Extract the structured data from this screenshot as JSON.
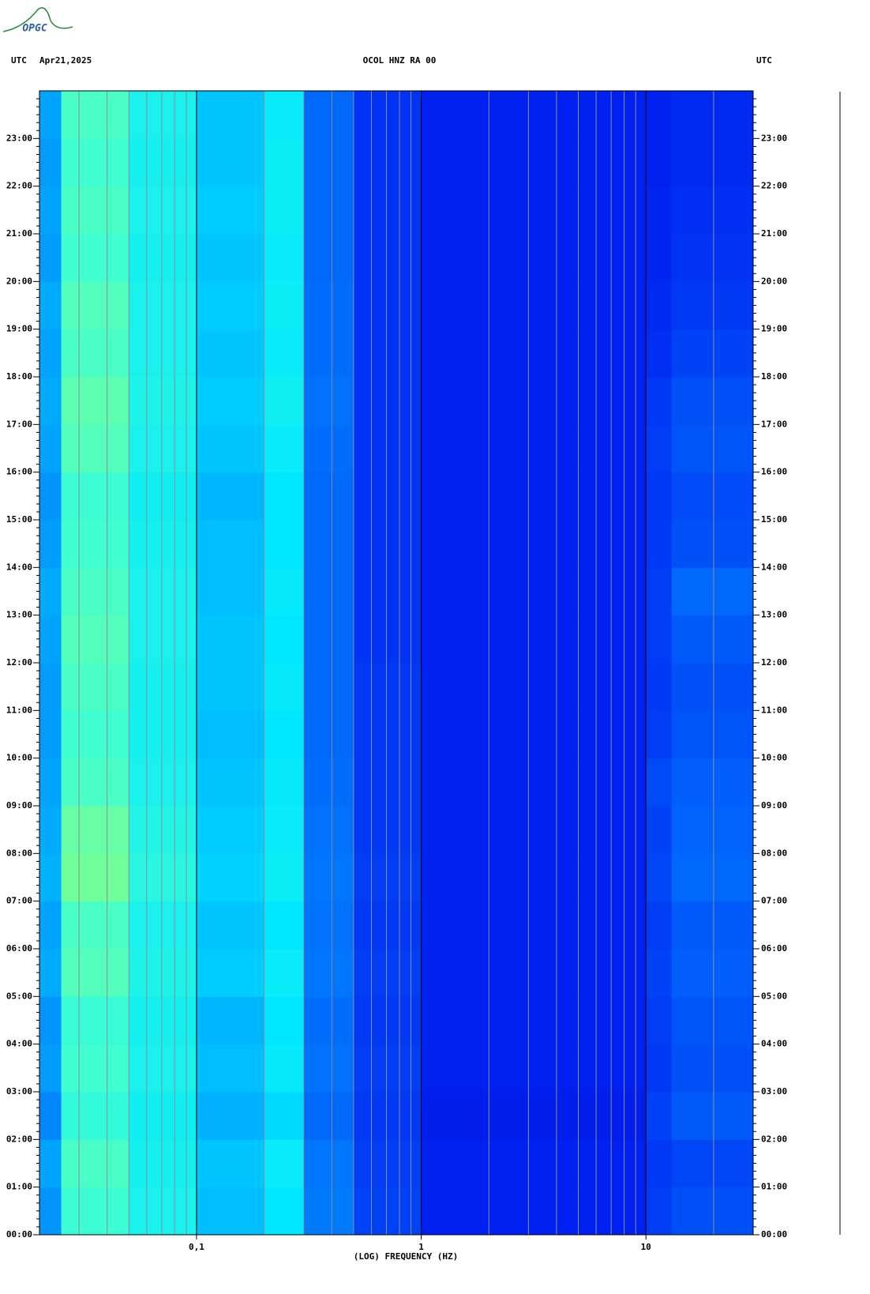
{
  "chart_data": {
    "type": "spectrogram",
    "logo": "OPGC",
    "title": "OCOL HNZ RA 00",
    "date": "Apr21,2025",
    "time_zone_left": "UTC",
    "time_zone_right": "UTC",
    "x_label": "(LOG) FREQUENCY (HZ)",
    "x_scale": "log",
    "xlim": [
      0.02,
      30
    ],
    "ylim": [
      0,
      24
    ],
    "xticks": [
      {
        "value": 0.1,
        "label": "0,1"
      },
      1,
      10
    ],
    "xgrid_minor": [
      0.03,
      0.04,
      0.05,
      0.06,
      0.07,
      0.08,
      0.09,
      0.2,
      0.3,
      0.4,
      0.5,
      0.6,
      0.7,
      0.8,
      0.9,
      2,
      3,
      4,
      5,
      6,
      7,
      8,
      9,
      20,
      30
    ],
    "yticks": [
      {
        "value": 0,
        "label": "00:00"
      },
      {
        "value": 1,
        "label": "01:00"
      },
      {
        "value": 2,
        "label": "02:00"
      },
      {
        "value": 3,
        "label": "03:00"
      },
      {
        "value": 4,
        "label": "04:00"
      },
      {
        "value": 5,
        "label": "05:00"
      },
      {
        "value": 6,
        "label": "06:00"
      },
      {
        "value": 7,
        "label": "07:00"
      },
      {
        "value": 8,
        "label": "08:00"
      },
      {
        "value": 9,
        "label": "09:00"
      },
      {
        "value": 10,
        "label": "10:00"
      },
      {
        "value": 11,
        "label": "11:00"
      },
      {
        "value": 12,
        "label": "12:00"
      },
      {
        "value": 13,
        "label": "13:00"
      },
      {
        "value": 14,
        "label": "14:00"
      },
      {
        "value": 15,
        "label": "15:00"
      },
      {
        "value": 16,
        "label": "16:00"
      },
      {
        "value": 17,
        "label": "17:00"
      },
      {
        "value": 18,
        "label": "18:00"
      },
      {
        "value": 19,
        "label": "19:00"
      },
      {
        "value": 20,
        "label": "20:00"
      },
      {
        "value": 21,
        "label": "21:00"
      },
      {
        "value": 22,
        "label": "22:00"
      },
      {
        "value": 23,
        "label": "23:00"
      }
    ],
    "band_edges": [
      0.02,
      0.025,
      0.05,
      0.1,
      0.2,
      0.3,
      0.5,
      1,
      10,
      13,
      30
    ],
    "time_edges": [
      0,
      1,
      2,
      3,
      4,
      5,
      6,
      7,
      8,
      9,
      10,
      11,
      12,
      13,
      14,
      15,
      16,
      17,
      18,
      19,
      20,
      21,
      22,
      23,
      24
    ],
    "colormap": [
      {
        "at": 0,
        "color": "#000080"
      },
      {
        "at": 0.15,
        "color": "#0020f0"
      },
      {
        "at": 0.35,
        "color": "#0080ff"
      },
      {
        "at": 0.5,
        "color": "#00e8ff"
      },
      {
        "at": 0.65,
        "color": "#40ffd0"
      },
      {
        "at": 0.8,
        "color": "#d0ff30"
      },
      {
        "at": 1,
        "color": "#ff0000"
      }
    ],
    "values": [
      [
        0.38,
        0.64,
        0.56,
        0.44,
        0.5,
        0.34,
        0.22,
        0.15,
        0.21,
        0.25
      ],
      [
        0.4,
        0.66,
        0.55,
        0.45,
        0.52,
        0.33,
        0.21,
        0.15,
        0.2,
        0.23
      ],
      [
        0.36,
        0.62,
        0.54,
        0.42,
        0.48,
        0.3,
        0.2,
        0.14,
        0.22,
        0.27
      ],
      [
        0.39,
        0.65,
        0.56,
        0.44,
        0.51,
        0.32,
        0.21,
        0.15,
        0.2,
        0.25
      ],
      [
        0.38,
        0.63,
        0.55,
        0.43,
        0.5,
        0.31,
        0.2,
        0.15,
        0.21,
        0.26
      ],
      [
        0.41,
        0.67,
        0.57,
        0.46,
        0.52,
        0.33,
        0.21,
        0.15,
        0.22,
        0.28
      ],
      [
        0.4,
        0.66,
        0.56,
        0.45,
        0.5,
        0.32,
        0.2,
        0.15,
        0.21,
        0.27
      ],
      [
        0.42,
        0.7,
        0.6,
        0.47,
        0.53,
        0.33,
        0.21,
        0.15,
        0.23,
        0.3
      ],
      [
        0.41,
        0.69,
        0.58,
        0.46,
        0.52,
        0.32,
        0.2,
        0.15,
        0.22,
        0.29
      ],
      [
        0.4,
        0.66,
        0.56,
        0.45,
        0.51,
        0.31,
        0.2,
        0.15,
        0.24,
        0.28
      ],
      [
        0.39,
        0.65,
        0.55,
        0.44,
        0.5,
        0.3,
        0.2,
        0.15,
        0.21,
        0.26
      ],
      [
        0.39,
        0.66,
        0.55,
        0.45,
        0.51,
        0.3,
        0.2,
        0.15,
        0.2,
        0.25
      ],
      [
        0.4,
        0.67,
        0.56,
        0.45,
        0.5,
        0.3,
        0.19,
        0.15,
        0.21,
        0.27
      ],
      [
        0.41,
        0.66,
        0.56,
        0.44,
        0.51,
        0.3,
        0.19,
        0.15,
        0.21,
        0.3
      ],
      [
        0.39,
        0.65,
        0.55,
        0.44,
        0.5,
        0.3,
        0.19,
        0.15,
        0.2,
        0.25
      ],
      [
        0.38,
        0.64,
        0.54,
        0.43,
        0.5,
        0.3,
        0.19,
        0.15,
        0.2,
        0.24
      ],
      [
        0.4,
        0.67,
        0.56,
        0.45,
        0.52,
        0.31,
        0.19,
        0.15,
        0.21,
        0.26
      ],
      [
        0.41,
        0.68,
        0.57,
        0.46,
        0.54,
        0.32,
        0.19,
        0.15,
        0.2,
        0.25
      ],
      [
        0.4,
        0.66,
        0.56,
        0.45,
        0.52,
        0.31,
        0.19,
        0.15,
        0.18,
        0.22
      ],
      [
        0.41,
        0.67,
        0.56,
        0.46,
        0.53,
        0.31,
        0.19,
        0.15,
        0.17,
        0.2
      ],
      [
        0.39,
        0.65,
        0.55,
        0.45,
        0.52,
        0.3,
        0.19,
        0.15,
        0.16,
        0.19
      ],
      [
        0.4,
        0.66,
        0.56,
        0.46,
        0.53,
        0.3,
        0.19,
        0.15,
        0.16,
        0.18
      ],
      [
        0.39,
        0.65,
        0.55,
        0.45,
        0.53,
        0.3,
        0.19,
        0.15,
        0.15,
        0.17
      ],
      [
        0.4,
        0.66,
        0.56,
        0.45,
        0.52,
        0.3,
        0.19,
        0.15,
        0.15,
        0.17
      ]
    ]
  }
}
